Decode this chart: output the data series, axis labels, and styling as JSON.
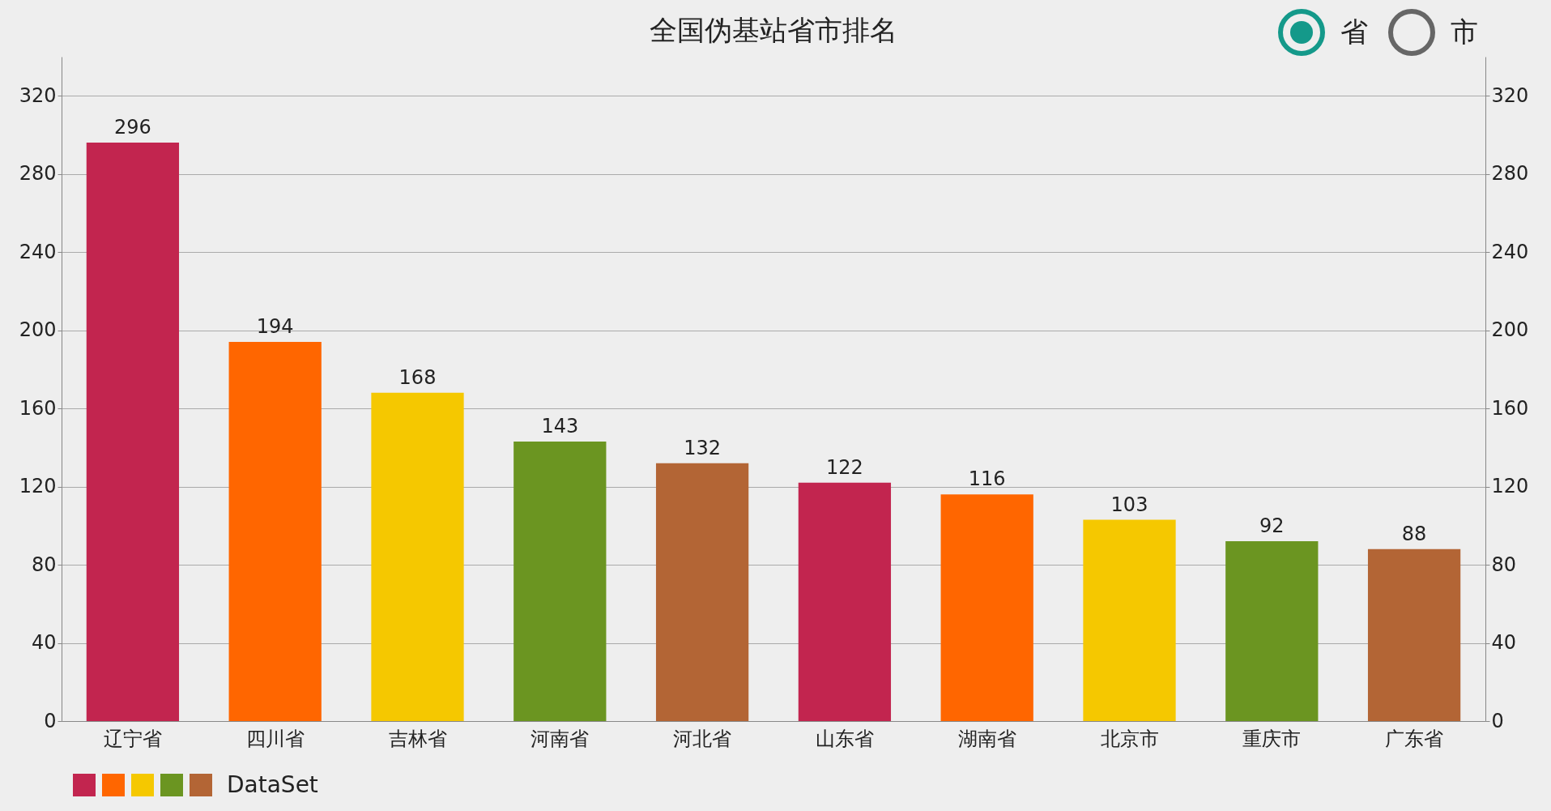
{
  "chart_data": {
    "type": "bar",
    "title": "全国伪基站省市排名",
    "categories": [
      "辽宁省",
      "四川省",
      "吉林省",
      "河南省",
      "河北省",
      "山东省",
      "湖南省",
      "北京市",
      "重庆市",
      "广东省"
    ],
    "series": [
      {
        "name": "DataSet",
        "colors": [
          "#c2254f",
          "#ff6600",
          "#f5c800",
          "#6b9521",
          "#b36535",
          "#c2254f",
          "#ff6600",
          "#f5c800",
          "#6b9521",
          "#b36535"
        ],
        "values": [
          296,
          194,
          168,
          143,
          132,
          122,
          116,
          103,
          92,
          88
        ]
      }
    ],
    "ylim": [
      0,
      340
    ],
    "yticks": [
      0,
      40,
      80,
      120,
      160,
      200,
      240,
      280,
      320
    ],
    "y2lim": [
      0,
      340
    ],
    "y2ticks": [
      0,
      40,
      80,
      120,
      160,
      200,
      240,
      280,
      320
    ],
    "grid": "y",
    "data_labels": true,
    "legend": "bottom left",
    "annotations": [
      "省",
      "市"
    ]
  }
}
